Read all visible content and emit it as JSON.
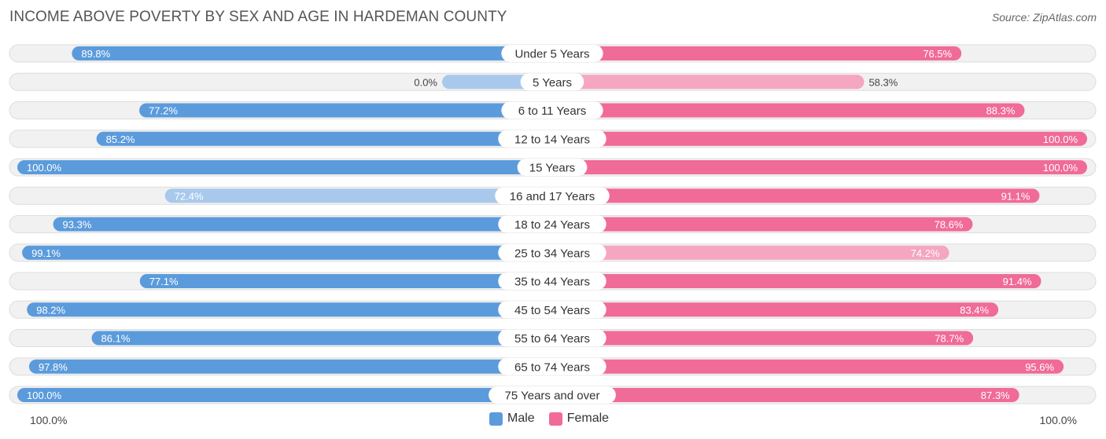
{
  "title": "INCOME ABOVE POVERTY BY SEX AND AGE IN HARDEMAN COUNTY",
  "source": "Source: ZipAtlas.com",
  "axis": {
    "left_label": "100.0%",
    "right_label": "100.0%"
  },
  "legend": {
    "male": "Male",
    "female": "Female"
  },
  "colors": {
    "male_strong": "#5b9bdc",
    "male_light": "#a9c9ec",
    "female_strong": "#f06b97",
    "female_light": "#f5a6c0",
    "track": "#f1f1f1",
    "track_border": "#dddddd"
  },
  "chart_data": {
    "type": "bar",
    "orientation": "horizontal-diverging",
    "title": "INCOME ABOVE POVERTY BY SEX AND AGE IN HARDEMAN COUNTY",
    "categories": [
      "Under 5 Years",
      "5 Years",
      "6 to 11 Years",
      "12 to 14 Years",
      "15 Years",
      "16 and 17 Years",
      "18 to 24 Years",
      "25 to 34 Years",
      "35 to 44 Years",
      "45 to 54 Years",
      "55 to 64 Years",
      "65 to 74 Years",
      "75 Years and over"
    ],
    "series": [
      {
        "name": "Male",
        "values": [
          89.8,
          0.0,
          77.2,
          85.2,
          100.0,
          72.4,
          93.3,
          99.1,
          77.1,
          98.2,
          86.1,
          97.8,
          100.0
        ],
        "labels": [
          "89.8%",
          "0.0%",
          "77.2%",
          "85.2%",
          "100.0%",
          "72.4%",
          "93.3%",
          "99.1%",
          "77.1%",
          "98.2%",
          "86.1%",
          "97.8%",
          "100.0%"
        ]
      },
      {
        "name": "Female",
        "values": [
          76.5,
          58.3,
          88.3,
          100.0,
          100.0,
          91.1,
          78.6,
          74.2,
          91.4,
          83.4,
          78.7,
          95.6,
          87.3
        ],
        "labels": [
          "76.5%",
          "58.3%",
          "88.3%",
          "100.0%",
          "100.0%",
          "91.1%",
          "78.6%",
          "74.2%",
          "91.4%",
          "83.4%",
          "78.7%",
          "95.6%",
          "87.3%"
        ]
      }
    ],
    "xlim": [
      0,
      100
    ],
    "unit": "%"
  }
}
